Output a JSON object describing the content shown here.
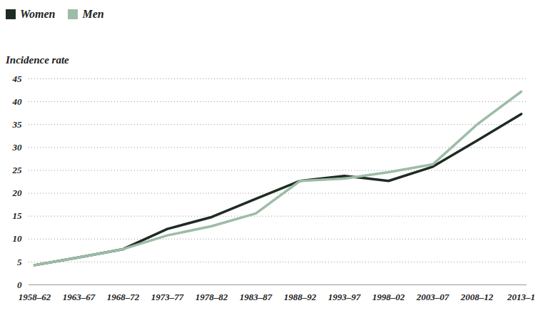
{
  "chart_data": {
    "type": "line",
    "y_label": "Incidence rate",
    "x": [
      "1958–62",
      "1963–67",
      "1968–72",
      "1973–77",
      "1978–82",
      "1983–87",
      "1988–92",
      "1993–97",
      "1998–02",
      "2003–07",
      "2008–12",
      "2013–1"
    ],
    "series": [
      {
        "name": "Women",
        "color": "#1e2b23",
        "values": [
          4.3,
          6.0,
          7.8,
          12.2,
          14.8,
          18.8,
          22.7,
          23.8,
          22.7,
          25.8,
          31.5,
          37.3
        ]
      },
      {
        "name": "Men",
        "color": "#9dbca7",
        "values": [
          4.3,
          6.0,
          7.8,
          10.8,
          12.8,
          15.6,
          22.7,
          23.2,
          24.6,
          26.3,
          35.0,
          42.2
        ]
      }
    ],
    "ylim": [
      0,
      45
    ],
    "yticks": [
      0,
      5,
      10,
      15,
      20,
      25,
      30,
      35,
      40,
      45
    ],
    "grid": true,
    "legend": "top-left"
  }
}
